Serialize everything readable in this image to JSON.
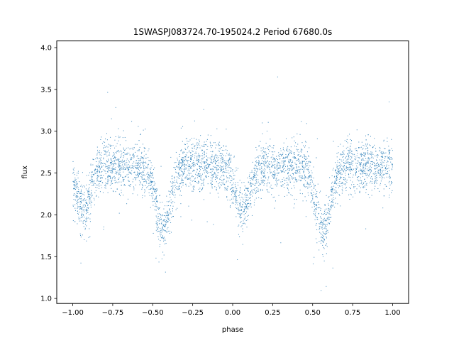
{
  "chart_data": {
    "type": "scatter",
    "title": "1SWASPJ083724.70-195024.2 Period 67680.0s",
    "xlabel": "phase",
    "ylabel": "flux",
    "xlim": [
      -1.1,
      1.1
    ],
    "ylim": [
      0.94,
      4.08
    ],
    "xticks": [
      -1.0,
      -0.75,
      -0.5,
      -0.25,
      0.0,
      0.25,
      0.5,
      0.75,
      1.0
    ],
    "xtick_labels": [
      "−1.00",
      "−0.75",
      "−0.50",
      "−0.25",
      "0.00",
      "0.25",
      "0.50",
      "0.75",
      "1.00"
    ],
    "yticks": [
      1.0,
      1.5,
      2.0,
      2.5,
      3.0,
      3.5,
      4.0
    ],
    "ytick_labels": [
      "1.0",
      "1.5",
      "2.0",
      "2.5",
      "3.0",
      "3.5",
      "4.0"
    ],
    "grid": false,
    "series": [
      {
        "marker_color": "#1f77b4",
        "marker": "point",
        "profile": {
          "baseline_flux": 2.58,
          "eclipses": [
            {
              "phase": -0.935,
              "depth": 0.52,
              "width": 0.045
            },
            {
              "phase": -0.435,
              "depth": 0.78,
              "width": 0.045
            },
            {
              "phase": 0.065,
              "depth": 0.52,
              "width": 0.045
            },
            {
              "phase": 0.565,
              "depth": 0.78,
              "width": 0.045
            }
          ],
          "scatter_sigma": 0.15,
          "phase_range": [
            -1.0,
            1.0
          ]
        }
      }
    ]
  }
}
